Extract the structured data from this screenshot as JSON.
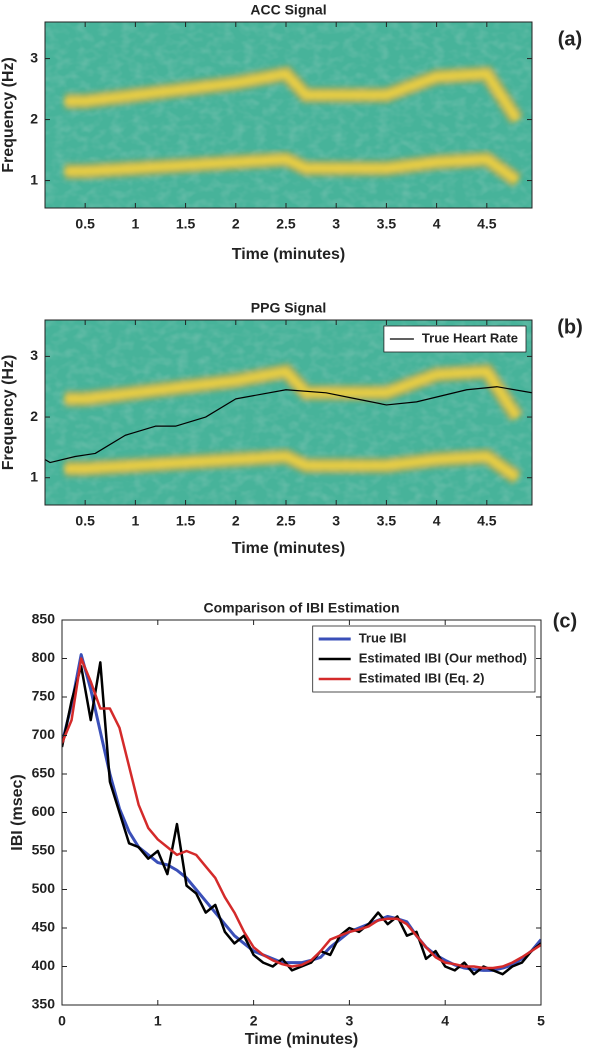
{
  "chart_data": [
    {
      "type": "spectrogram",
      "title": "ACC Signal",
      "panel_label": "(a)",
      "x_label": "Time (minutes)",
      "y_label": "Frequency (Hz)",
      "xlim": [
        0.1,
        4.95
      ],
      "ylim": [
        0.55,
        3.6
      ],
      "xticks": [
        0.5,
        1,
        1.5,
        2,
        2.5,
        3,
        3.5,
        4,
        4.5
      ],
      "yticks": [
        1,
        2,
        3
      ],
      "background_color": "#47b39a",
      "ridge_color": "#f4d43c",
      "x": [
        0.3,
        0.5,
        1,
        1.5,
        2,
        2.5,
        2.7,
        3,
        3.5,
        4,
        4.5,
        4.8
      ],
      "ridges": [
        [
          1.15,
          1.15,
          1.2,
          1.25,
          1.3,
          1.35,
          1.2,
          1.2,
          1.2,
          1.3,
          1.35,
          1.0
        ],
        [
          2.3,
          2.3,
          2.4,
          2.5,
          2.6,
          2.75,
          2.4,
          2.4,
          2.4,
          2.7,
          2.75,
          2.0
        ]
      ]
    },
    {
      "type": "spectrogram",
      "title": "PPG Signal",
      "panel_label": "(b)",
      "x_label": "Time (minutes)",
      "y_label": "Frequency (Hz)",
      "xlim": [
        0.1,
        4.95
      ],
      "ylim": [
        0.55,
        3.6
      ],
      "xticks": [
        0.5,
        1,
        1.5,
        2,
        2.5,
        3,
        3.5,
        4,
        4.5
      ],
      "yticks": [
        1,
        2,
        3
      ],
      "background_color": "#47b39a",
      "ridge_color": "#f4d43c",
      "x": [
        0.3,
        0.5,
        1,
        1.5,
        2,
        2.5,
        2.7,
        3,
        3.5,
        4,
        4.5,
        4.8
      ],
      "ridges": [
        [
          1.15,
          1.15,
          1.2,
          1.25,
          1.3,
          1.35,
          1.2,
          1.2,
          1.2,
          1.3,
          1.35,
          1.0
        ],
        [
          2.3,
          2.3,
          2.4,
          2.5,
          2.6,
          2.75,
          2.4,
          2.4,
          2.4,
          2.7,
          2.75,
          2.0
        ]
      ],
      "legend": "upper right",
      "series": [
        {
          "name": "True Heart Rate",
          "color": "#000000",
          "x": [
            0.1,
            0.15,
            0.4,
            0.6,
            0.9,
            1.2,
            1.4,
            1.7,
            2.0,
            2.5,
            2.9,
            3.2,
            3.5,
            3.8,
            4.3,
            4.6,
            4.95
          ],
          "values": [
            1.3,
            1.25,
            1.35,
            1.4,
            1.7,
            1.85,
            1.85,
            2.0,
            2.3,
            2.45,
            2.4,
            2.3,
            2.2,
            2.25,
            2.45,
            2.5,
            2.4
          ]
        }
      ]
    },
    {
      "type": "line",
      "title": "Comparison of IBI Estimation",
      "panel_label": "(c)",
      "x_label": "Time (minutes)",
      "y_label": "IBI (msec)",
      "xlim": [
        0,
        5
      ],
      "ylim": [
        350,
        850
      ],
      "xticks": [
        0,
        1,
        2,
        3,
        4,
        5
      ],
      "yticks": [
        350,
        400,
        450,
        500,
        550,
        600,
        650,
        700,
        750,
        800,
        850
      ],
      "legend": "upper right",
      "x": [
        0,
        0.1,
        0.2,
        0.3,
        0.4,
        0.5,
        0.6,
        0.7,
        0.8,
        0.9,
        1,
        1.1,
        1.2,
        1.3,
        1.4,
        1.5,
        1.6,
        1.7,
        1.8,
        1.9,
        2,
        2.1,
        2.2,
        2.3,
        2.4,
        2.5,
        2.6,
        2.7,
        2.8,
        2.9,
        3,
        3.1,
        3.2,
        3.3,
        3.4,
        3.5,
        3.6,
        3.7,
        3.8,
        3.9,
        4,
        4.1,
        4.2,
        4.3,
        4.4,
        4.5,
        4.6,
        4.7,
        4.8,
        4.9,
        5
      ],
      "series": [
        {
          "name": "True IBI",
          "color": "#3a4fb8",
          "width": 3,
          "values": [
            690,
            740,
            805,
            760,
            705,
            650,
            605,
            575,
            555,
            545,
            535,
            532,
            525,
            515,
            500,
            485,
            470,
            455,
            440,
            430,
            420,
            415,
            410,
            405,
            405,
            405,
            408,
            412,
            425,
            435,
            445,
            450,
            455,
            460,
            465,
            462,
            458,
            440,
            425,
            415,
            408,
            402,
            398,
            396,
            395,
            395,
            398,
            402,
            410,
            420,
            435
          ]
        },
        {
          "name": "Estimated IBI (Our method)",
          "color": "#000000",
          "width": 2.5,
          "values": [
            685,
            745,
            790,
            720,
            795,
            640,
            600,
            560,
            555,
            540,
            550,
            520,
            585,
            505,
            495,
            470,
            480,
            445,
            430,
            440,
            415,
            405,
            400,
            410,
            395,
            400,
            405,
            420,
            415,
            440,
            450,
            445,
            455,
            470,
            455,
            465,
            440,
            445,
            410,
            420,
            400,
            395,
            405,
            390,
            400,
            395,
            390,
            400,
            405,
            420,
            430
          ]
        },
        {
          "name": "Estimated IBI (Eq. 2)",
          "color": "#d42a2a",
          "width": 2.5,
          "values": [
            690,
            720,
            800,
            770,
            735,
            735,
            710,
            660,
            610,
            580,
            565,
            555,
            545,
            550,
            545,
            530,
            515,
            490,
            470,
            445,
            425,
            415,
            408,
            403,
            400,
            402,
            408,
            420,
            435,
            440,
            445,
            448,
            452,
            460,
            462,
            462,
            455,
            440,
            425,
            412,
            405,
            403,
            400,
            400,
            398,
            398,
            400,
            405,
            412,
            420,
            428
          ]
        }
      ]
    }
  ]
}
